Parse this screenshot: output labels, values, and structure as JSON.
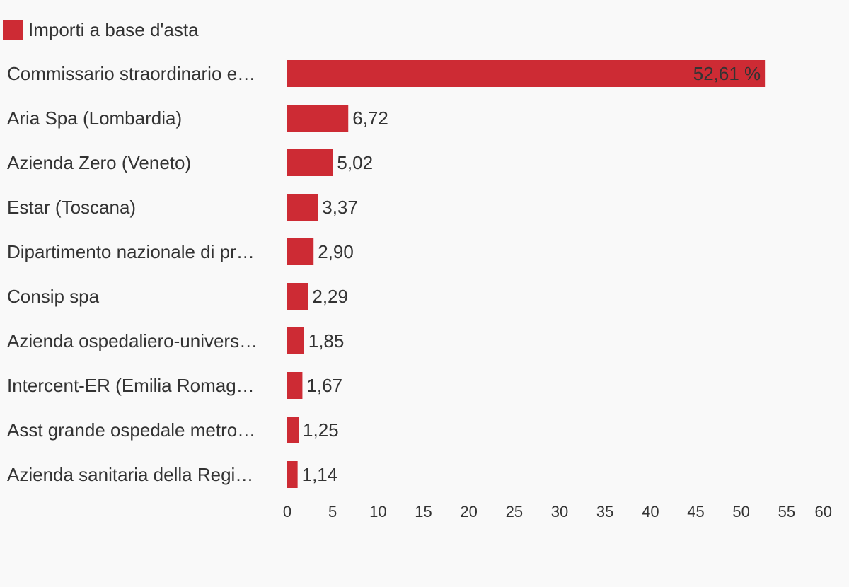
{
  "chart_data": {
    "type": "bar",
    "orientation": "horizontal",
    "legend": {
      "label": "Importi a base d'asta",
      "placement": "top-left"
    },
    "categories": [
      "Commissario straordinario e…",
      "Aria Spa (Lombardia)",
      "Azienda Zero (Veneto)",
      "Estar (Toscana)",
      "Dipartimento nazionale di pr…",
      "Consip spa",
      "Azienda ospedaliero-univers…",
      "Intercent-ER (Emilia Romag…",
      "Asst grande ospedale metro…",
      "Azienda sanitaria della Regi…"
    ],
    "series": [
      {
        "name": "Importi a base d'asta",
        "values": [
          52.61,
          6.72,
          5.02,
          3.37,
          2.9,
          2.29,
          1.85,
          1.67,
          1.25,
          1.14
        ],
        "labels": [
          "52,61 %",
          "6,72",
          "5,02",
          "3,37",
          "2,90",
          "2,29",
          "1,85",
          "1,67",
          "1,25",
          "1,14"
        ]
      }
    ],
    "xlim": [
      0,
      60
    ],
    "xticks": [
      0,
      5,
      10,
      15,
      20,
      25,
      30,
      35,
      40,
      45,
      50,
      55,
      60
    ],
    "xlabel": "",
    "ylabel": "",
    "grid": false,
    "colors": {
      "bar": "#cd2b34",
      "text": "#333333",
      "background": "#f9f9f9"
    }
  }
}
